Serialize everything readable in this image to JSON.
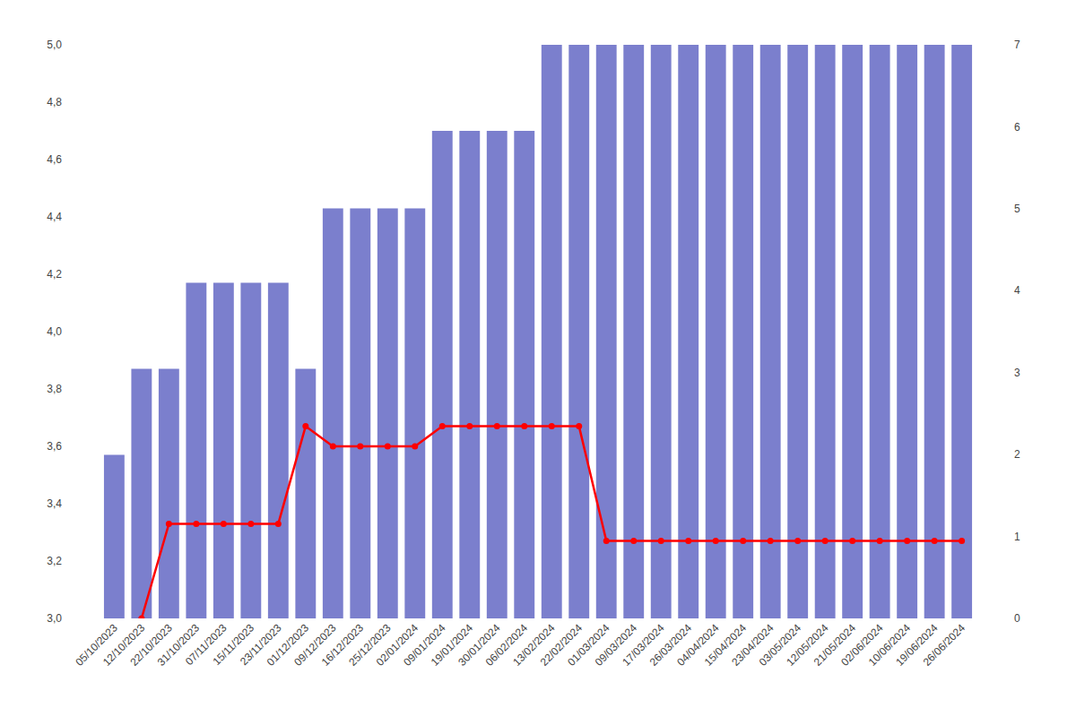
{
  "chart_data": {
    "type": "bar",
    "categories": [
      "05/10/2023",
      "12/10/2023",
      "22/10/2023",
      "31/10/2023",
      "07/11/2023",
      "15/11/2023",
      "23/11/2023",
      "01/12/2023",
      "09/12/2023",
      "16/12/2023",
      "25/12/2023",
      "02/01/2024",
      "09/01/2024",
      "19/01/2024",
      "30/01/2024",
      "06/02/2024",
      "13/02/2024",
      "22/02/2024",
      "01/03/2024",
      "09/03/2024",
      "17/03/2024",
      "26/03/2024",
      "04/04/2024",
      "15/04/2024",
      "23/04/2024",
      "03/05/2024",
      "12/05/2024",
      "21/05/2024",
      "02/06/2024",
      "10/06/2024",
      "19/06/2024",
      "26/06/2024"
    ],
    "series": [
      {
        "type": "bar",
        "color": "#7b7fcd",
        "values": [
          3.57,
          3.87,
          3.87,
          4.17,
          4.17,
          4.17,
          4.17,
          3.87,
          4.43,
          4.43,
          4.43,
          4.43,
          4.7,
          4.7,
          4.7,
          4.7,
          5.0,
          5.0,
          5.0,
          5.0,
          5.0,
          5.0,
          5.0,
          5.0,
          5.0,
          5.0,
          5.0,
          5.0,
          5.0,
          5.0,
          5.0,
          5.0
        ]
      },
      {
        "type": "line",
        "color": "#ff0000",
        "marker": "circle",
        "line_style": "solid",
        "values": [
          null,
          3.0,
          3.33,
          3.33,
          3.33,
          3.33,
          3.33,
          3.67,
          3.6,
          3.6,
          3.6,
          3.6,
          3.67,
          3.67,
          3.67,
          3.67,
          3.67,
          3.67,
          3.27,
          3.27,
          3.27,
          3.27,
          3.27,
          3.27,
          3.27,
          3.27,
          3.27,
          3.27,
          3.27,
          3.27,
          3.27,
          3.27
        ]
      }
    ],
    "ylim": [
      3.0,
      5.0
    ],
    "yticks": [
      {
        "value": 3.0,
        "label": "3,0"
      },
      {
        "value": 3.2,
        "label": "3,2"
      },
      {
        "value": 3.4,
        "label": "3,4"
      },
      {
        "value": 3.6,
        "label": "3,6"
      },
      {
        "value": 3.8,
        "label": "3,8"
      },
      {
        "value": 4.0,
        "label": "4,0"
      },
      {
        "value": 4.2,
        "label": "4,2"
      },
      {
        "value": 4.4,
        "label": "4,4"
      },
      {
        "value": 4.6,
        "label": "4,6"
      },
      {
        "value": 4.8,
        "label": "4,8"
      },
      {
        "value": 5.0,
        "label": "5,0"
      }
    ],
    "y2lim": [
      0,
      7
    ],
    "y2ticks": [
      0,
      1,
      2,
      3,
      4,
      5,
      6,
      7
    ],
    "grid": false
  }
}
